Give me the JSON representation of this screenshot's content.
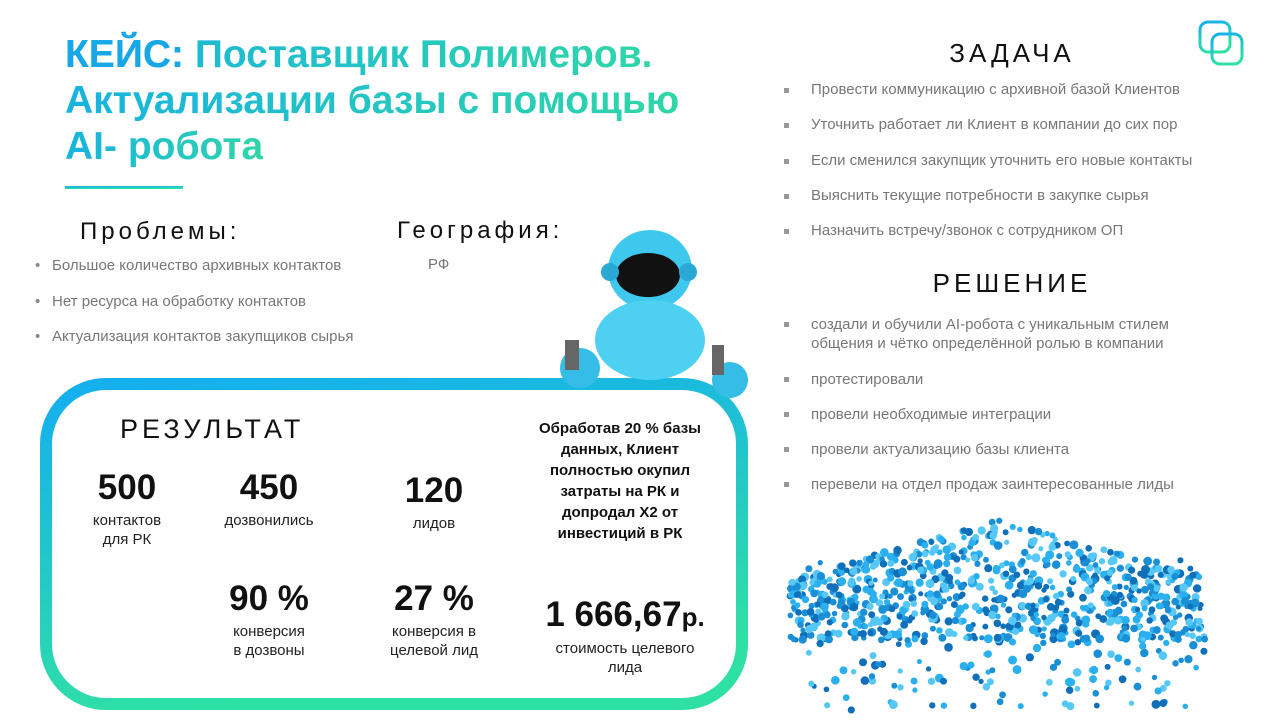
{
  "header": {
    "label": "КЕЙС:",
    "title_lines": [
      "Поставщик Полимеров.",
      "Актуализации базы с помощью",
      "AI- робота"
    ]
  },
  "problems": {
    "heading": "Проблемы:",
    "items": [
      "Большое количество архивных контактов",
      "Нет ресурса на обработку контактов",
      "Актуализация контактов закупщиков сырья"
    ]
  },
  "geography": {
    "heading": "География:",
    "value": "РФ"
  },
  "task": {
    "heading": "ЗАДАЧА",
    "items": [
      "Провести коммуникацию с архивной базой Клиентов",
      "Уточнить работает ли Клиент в компании до сих пор",
      "Если сменился закупщик уточнить его новые контакты",
      "Выяснить текущие потребности в закупке сырья",
      "Назначить встречу/звонок с сотрудником ОП"
    ]
  },
  "solution": {
    "heading": "РЕШЕНИЕ",
    "items": [
      "создали и обучили AI-робота с уникальным стилем общения и чётко определённой ролью в компании",
      "протестировали",
      "провели необходимые интеграции",
      "провели актуализацию базы клиента",
      "перевели на отдел продаж заинтересованные лиды"
    ]
  },
  "result": {
    "heading": "РЕЗУЛЬТАТ",
    "stats": [
      {
        "value": "500",
        "label_lines": [
          "контактов",
          "для РК"
        ]
      },
      {
        "value": "450",
        "label_lines": [
          "дозвонились"
        ]
      },
      {
        "value": "120",
        "label_lines": [
          "лидов"
        ]
      },
      {
        "value": "90 %",
        "label_lines": [
          "конверсия",
          "в дозвоны"
        ]
      },
      {
        "value": "27 %",
        "label_lines": [
          "конверсия в",
          "целевой лид"
        ]
      }
    ],
    "note": "Обработав 20 % базы данных, Клиент полностью окупил затраты на РК и допродал Х2 от инвестиций в РК",
    "cost": {
      "value": "1 666,67",
      "unit": "р.",
      "label_lines": [
        "стоимость целевого",
        "лида"
      ]
    }
  }
}
